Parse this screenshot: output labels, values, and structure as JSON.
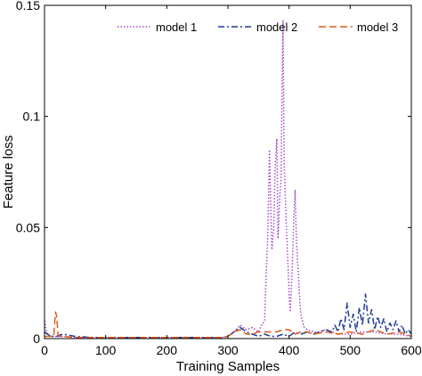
{
  "chart_data": {
    "type": "line",
    "title": "",
    "xlabel": "Training Samples",
    "ylabel": "Feature loss",
    "xlim": [
      0,
      600
    ],
    "ylim": [
      0,
      0.15
    ],
    "xticks": [
      0,
      100,
      200,
      300,
      400,
      500,
      600
    ],
    "xtick_labels": [
      "0",
      "100",
      "200",
      "300",
      "400",
      "500",
      "600"
    ],
    "yticks": [
      0,
      0.05,
      0.1,
      0.15
    ],
    "ytick_labels": [
      "0",
      "0.05",
      "0.1",
      "0.15"
    ],
    "grid": false,
    "legend_position": "top-center",
    "series": [
      {
        "name": "model 1",
        "color": "#a64ac9",
        "style": "dotted",
        "x": [
          0,
          2,
          5,
          10,
          20,
          30,
          50,
          80,
          100,
          150,
          200,
          250,
          290,
          300,
          310,
          320,
          330,
          340,
          350,
          355,
          360,
          362,
          365,
          368,
          370,
          372,
          375,
          377,
          380,
          382,
          385,
          387,
          390,
          392,
          395,
          398,
          400,
          402,
          405,
          408,
          410,
          412,
          415,
          418,
          420,
          425,
          430,
          440,
          450,
          460,
          480,
          500,
          520,
          540,
          560,
          580,
          600
        ],
        "y": [
          0.008,
          0.005,
          0.002,
          0.001,
          0.001,
          0.001,
          0.0005,
          0.0005,
          0.0005,
          0.0005,
          0.0005,
          0.0005,
          0.0005,
          0.001,
          0.003,
          0.006,
          0.004,
          0.005,
          0.003,
          0.006,
          0.008,
          0.025,
          0.045,
          0.085,
          0.06,
          0.04,
          0.05,
          0.075,
          0.09,
          0.045,
          0.065,
          0.072,
          0.143,
          0.08,
          0.055,
          0.035,
          0.02,
          0.012,
          0.03,
          0.055,
          0.067,
          0.045,
          0.03,
          0.015,
          0.01,
          0.005,
          0.004,
          0.003,
          0.003,
          0.004,
          0.002,
          0.002,
          0.003,
          0.003,
          0.002,
          0.002,
          0.001
        ]
      },
      {
        "name": "model 2",
        "color": "#1f3a93",
        "style": "dashdot",
        "x": [
          0,
          5,
          10,
          20,
          30,
          50,
          80,
          100,
          150,
          200,
          250,
          290,
          300,
          310,
          320,
          330,
          340,
          350,
          360,
          370,
          380,
          390,
          400,
          410,
          420,
          430,
          440,
          450,
          460,
          470,
          475,
          480,
          485,
          490,
          495,
          500,
          505,
          510,
          515,
          520,
          525,
          530,
          535,
          540,
          545,
          550,
          555,
          560,
          565,
          570,
          575,
          580,
          585,
          590,
          595,
          600
        ],
        "y": [
          0.003,
          0.002,
          0.001,
          0.001,
          0.002,
          0.001,
          0.0005,
          0.0005,
          0.0005,
          0.0005,
          0.0005,
          0.0005,
          0.001,
          0.003,
          0.005,
          0.003,
          0.002,
          0.001,
          0.002,
          0.001,
          0.001,
          0.002,
          0.001,
          0.003,
          0.002,
          0.003,
          0.002,
          0.003,
          0.004,
          0.003,
          0.006,
          0.003,
          0.009,
          0.004,
          0.016,
          0.005,
          0.011,
          0.003,
          0.014,
          0.006,
          0.02,
          0.007,
          0.013,
          0.004,
          0.01,
          0.005,
          0.009,
          0.003,
          0.007,
          0.004,
          0.008,
          0.003,
          0.006,
          0.002,
          0.004,
          0.002
        ]
      },
      {
        "name": "model 3",
        "color": "#e05a1e",
        "style": "dashed",
        "x": [
          0,
          5,
          10,
          15,
          18,
          20,
          22,
          25,
          30,
          50,
          80,
          100,
          150,
          200,
          250,
          290,
          300,
          310,
          320,
          330,
          340,
          350,
          360,
          370,
          380,
          390,
          400,
          410,
          420,
          430,
          440,
          460,
          480,
          500,
          520,
          540,
          560,
          580,
          600
        ],
        "y": [
          0.001,
          0.001,
          0.001,
          0.001,
          0.012,
          0.01,
          0.002,
          0.001,
          0.001,
          0.0005,
          0.0005,
          0.0005,
          0.0005,
          0.0005,
          0.0005,
          0.0005,
          0.001,
          0.003,
          0.004,
          0.002,
          0.002,
          0.003,
          0.003,
          0.003,
          0.003,
          0.004,
          0.004,
          0.002,
          0.003,
          0.003,
          0.002,
          0.003,
          0.002,
          0.003,
          0.002,
          0.004,
          0.002,
          0.003,
          0.001
        ]
      }
    ]
  }
}
